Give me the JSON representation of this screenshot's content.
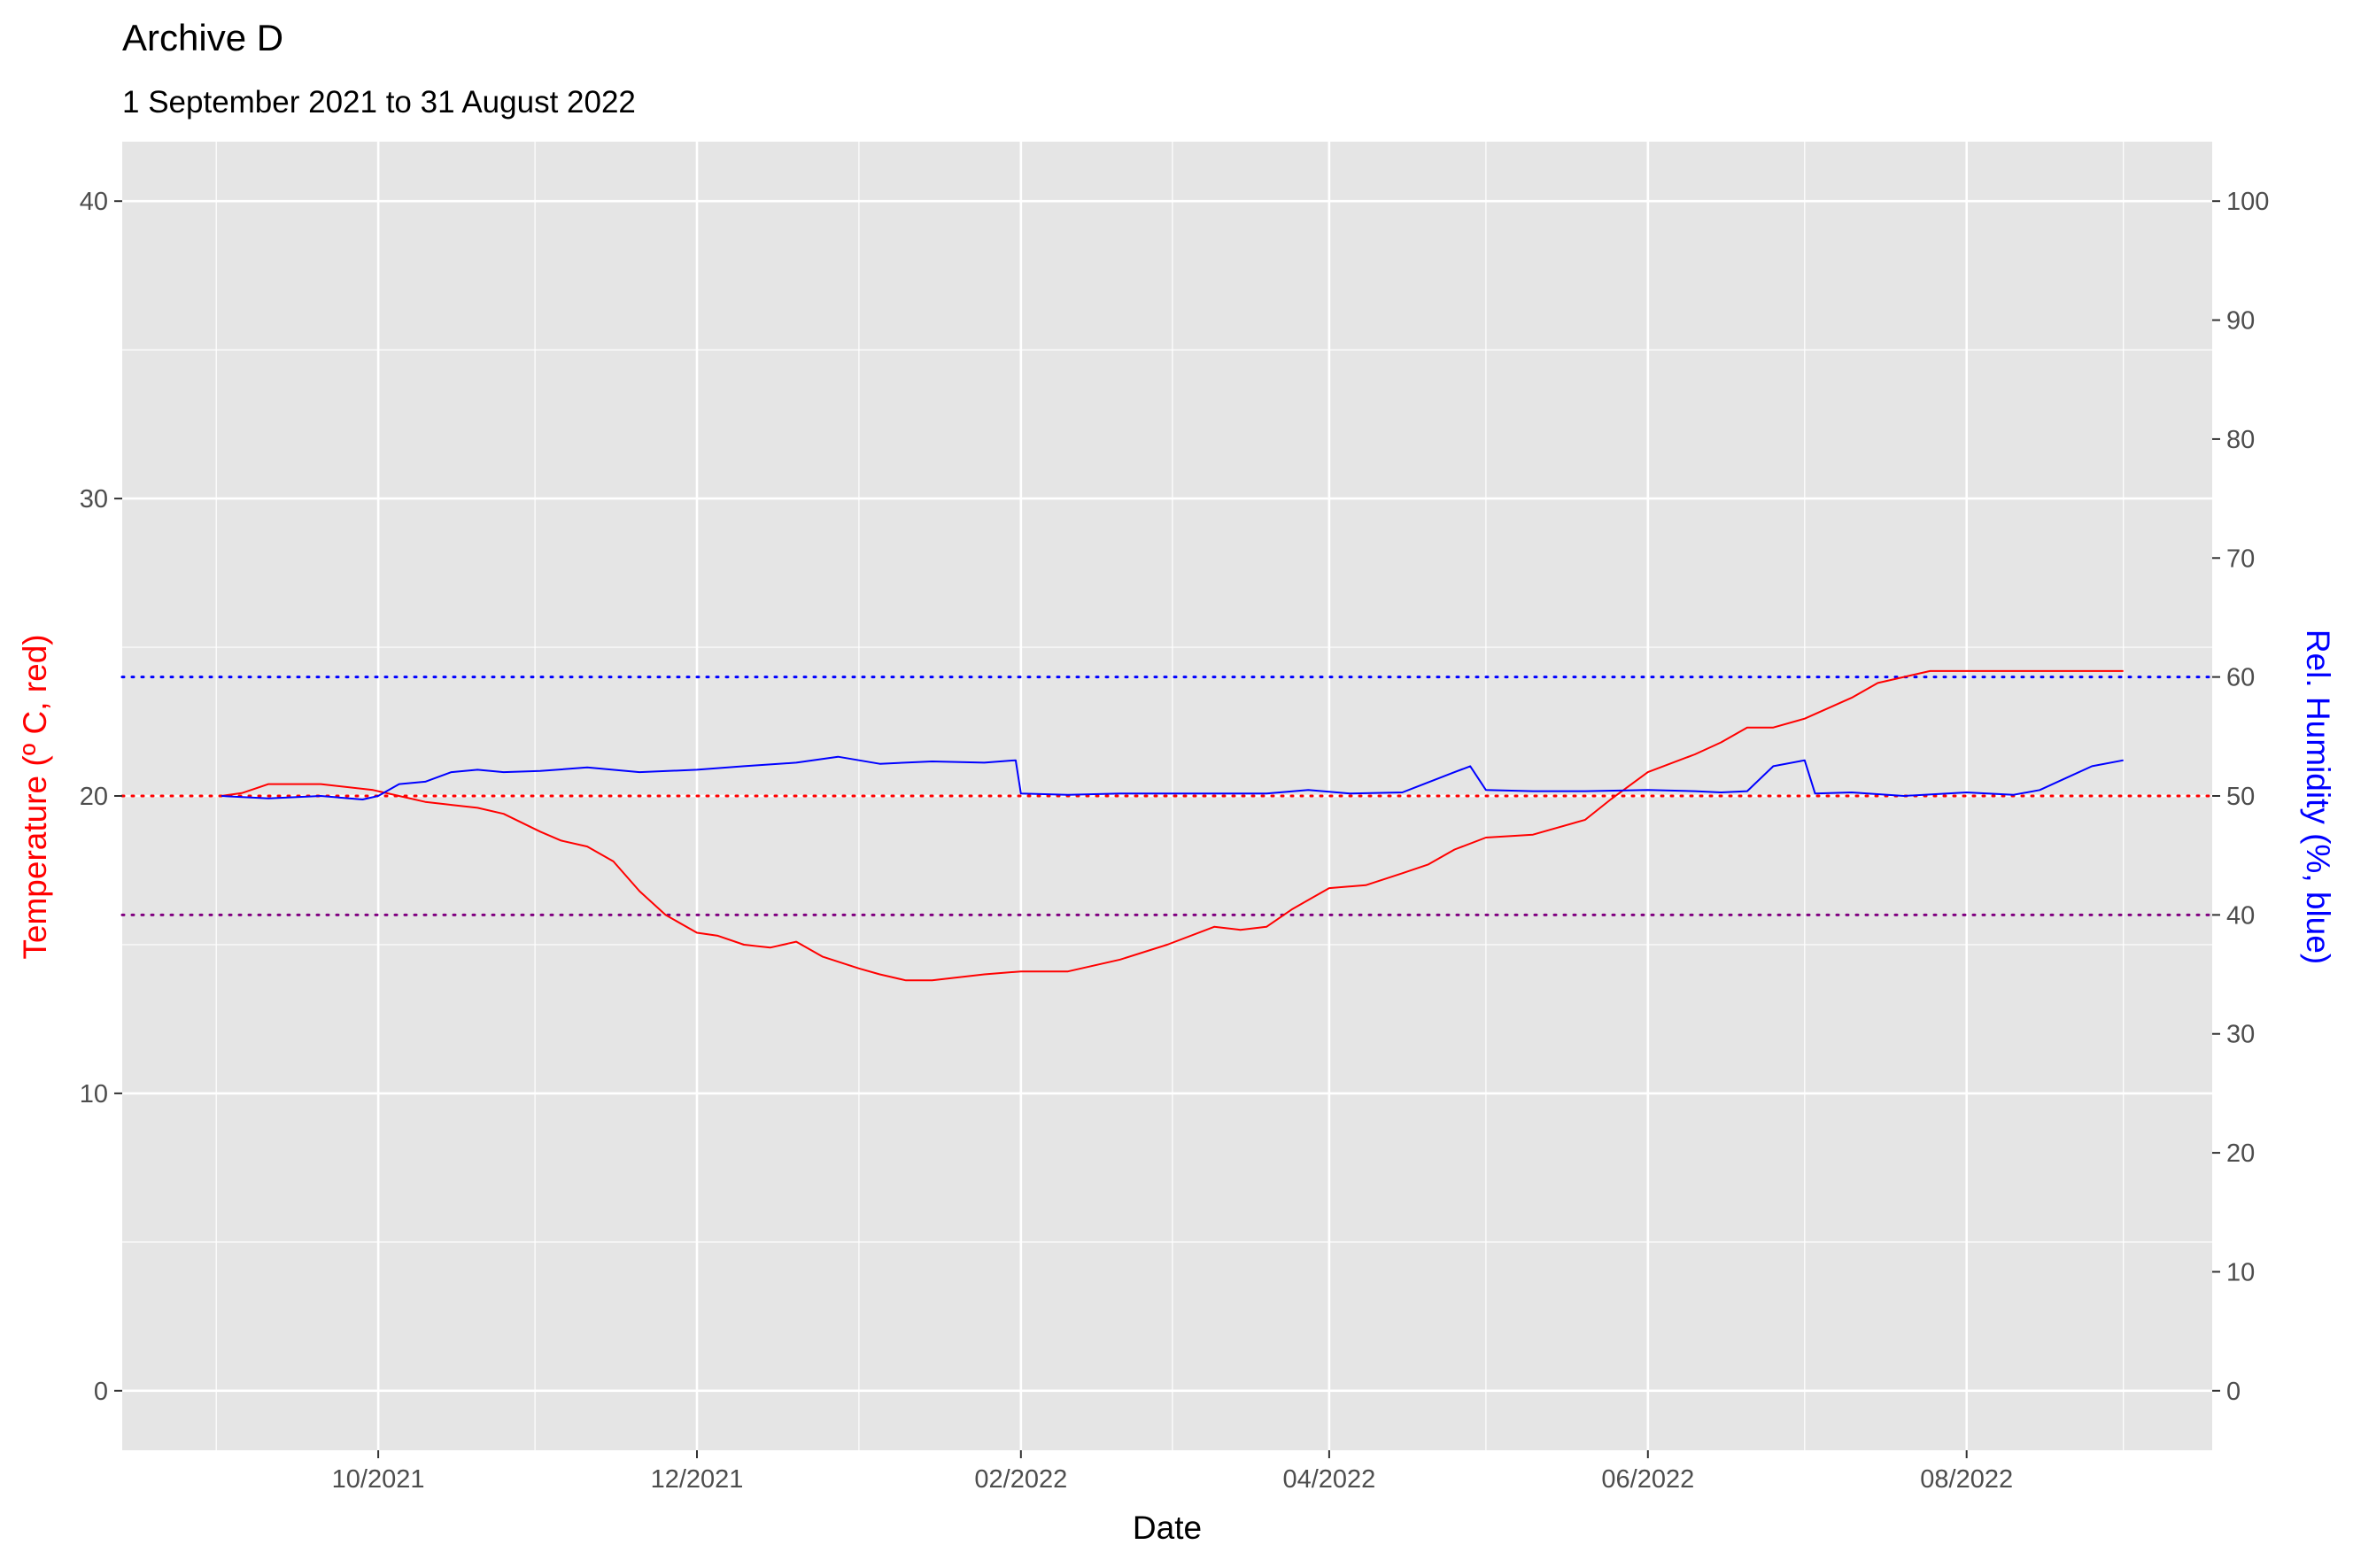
{
  "title": "Archive D",
  "subtitle": "1 September 2021 to 31 August 2022",
  "chart_data": {
    "type": "line",
    "title": "Archive D",
    "subtitle": "1 September 2021 to 31 August 2022",
    "xlabel": "Date",
    "ylabel": "Temperature (º C, red)",
    "y2label": "Rel. Humidity (%, blue)",
    "xlim": [
      "2021-08-13",
      "2022-09-17"
    ],
    "ylim": [
      -2,
      42
    ],
    "y2lim": [
      -5,
      105
    ],
    "x_ticks": [
      "10/2021",
      "12/2021",
      "02/2022",
      "04/2022",
      "06/2022",
      "08/2022"
    ],
    "x_tick_dates": [
      "2021-10-01",
      "2021-12-01",
      "2022-02-01",
      "2022-04-01",
      "2022-06-01",
      "2022-08-01"
    ],
    "y_ticks": [
      0,
      10,
      20,
      30,
      40
    ],
    "y2_ticks": [
      0,
      10,
      20,
      30,
      40,
      50,
      60,
      70,
      80,
      90,
      100
    ],
    "grid": true,
    "reference_lines": [
      {
        "axis": "y",
        "value": 20,
        "color": "#ff0000",
        "style": "dotted"
      },
      {
        "axis": "y2",
        "value": 60,
        "color": "#0000ff",
        "style": "dotted"
      },
      {
        "axis": "y2",
        "value": 40,
        "color": "#800080",
        "style": "dotted"
      }
    ],
    "series": [
      {
        "axis": "y",
        "color": "#ff0000",
        "x": [
          "2021-09-01",
          "2021-09-05",
          "2021-09-10",
          "2021-09-20",
          "2021-09-30",
          "2021-10-05",
          "2021-10-10",
          "2021-10-15",
          "2021-10-20",
          "2021-10-25",
          "2021-11-01",
          "2021-11-05",
          "2021-11-10",
          "2021-11-15",
          "2021-11-20",
          "2021-11-25",
          "2021-12-01",
          "2021-12-05",
          "2021-12-10",
          "2021-12-15",
          "2021-12-20",
          "2021-12-25",
          "2022-01-01",
          "2022-01-05",
          "2022-01-10",
          "2022-01-15",
          "2022-01-20",
          "2022-01-25",
          "2022-02-01",
          "2022-02-10",
          "2022-02-20",
          "2022-03-01",
          "2022-03-10",
          "2022-03-15",
          "2022-03-20",
          "2022-03-25",
          "2022-04-01",
          "2022-04-08",
          "2022-04-15",
          "2022-04-20",
          "2022-04-25",
          "2022-05-01",
          "2022-05-10",
          "2022-05-20",
          "2022-05-25",
          "2022-06-01",
          "2022-06-10",
          "2022-06-15",
          "2022-06-20",
          "2022-06-25",
          "2022-07-01",
          "2022-07-10",
          "2022-07-15",
          "2022-07-20",
          "2022-07-25",
          "2022-08-01",
          "2022-08-10",
          "2022-08-20",
          "2022-08-31"
        ],
        "values": [
          20.0,
          20.1,
          20.4,
          20.4,
          20.2,
          20.0,
          19.8,
          19.7,
          19.6,
          19.4,
          18.8,
          18.5,
          18.3,
          17.8,
          16.8,
          16.0,
          15.4,
          15.3,
          15.0,
          14.9,
          15.1,
          14.6,
          14.2,
          14.0,
          13.8,
          13.8,
          13.9,
          14.0,
          14.1,
          14.1,
          14.5,
          15.0,
          15.6,
          15.5,
          15.6,
          16.2,
          16.9,
          17.0,
          17.4,
          17.7,
          18.2,
          18.6,
          18.7,
          19.2,
          19.9,
          20.8,
          21.4,
          21.8,
          22.3,
          22.3,
          22.6,
          23.3,
          23.8,
          24.0,
          24.2,
          24.2,
          24.2,
          24.2,
          24.2
        ]
      },
      {
        "axis": "y2",
        "color": "#0000ff",
        "x": [
          "2021-09-01",
          "2021-09-10",
          "2021-09-20",
          "2021-09-28",
          "2021-10-01",
          "2021-10-05",
          "2021-10-10",
          "2021-10-15",
          "2021-10-20",
          "2021-10-25",
          "2021-11-01",
          "2021-11-10",
          "2021-11-20",
          "2021-12-01",
          "2021-12-10",
          "2021-12-20",
          "2021-12-28",
          "2022-01-01",
          "2022-01-05",
          "2022-01-15",
          "2022-01-25",
          "2022-01-31",
          "2022-02-01",
          "2022-02-10",
          "2022-02-20",
          "2022-03-01",
          "2022-03-10",
          "2022-03-20",
          "2022-03-28",
          "2022-04-05",
          "2022-04-15",
          "2022-04-25",
          "2022-04-28",
          "2022-05-01",
          "2022-05-10",
          "2022-05-20",
          "2022-06-01",
          "2022-06-10",
          "2022-06-15",
          "2022-06-20",
          "2022-06-25",
          "2022-07-01",
          "2022-07-03",
          "2022-07-10",
          "2022-07-20",
          "2022-08-01",
          "2022-08-10",
          "2022-08-15",
          "2022-08-20",
          "2022-08-25",
          "2022-08-31"
        ],
        "values": [
          50.0,
          49.8,
          50.0,
          49.7,
          50.0,
          51.0,
          51.2,
          52.0,
          52.2,
          52.0,
          52.1,
          52.4,
          52.0,
          52.2,
          52.5,
          52.8,
          53.3,
          53.0,
          52.7,
          52.9,
          52.8,
          53.0,
          50.2,
          50.1,
          50.2,
          50.2,
          50.2,
          50.2,
          50.5,
          50.2,
          50.3,
          52.0,
          52.5,
          50.5,
          50.4,
          50.4,
          50.5,
          50.4,
          50.3,
          50.4,
          52.5,
          53.0,
          50.2,
          50.3,
          50.0,
          50.3,
          50.1,
          50.5,
          51.5,
          52.5,
          53.0
        ]
      }
    ]
  }
}
